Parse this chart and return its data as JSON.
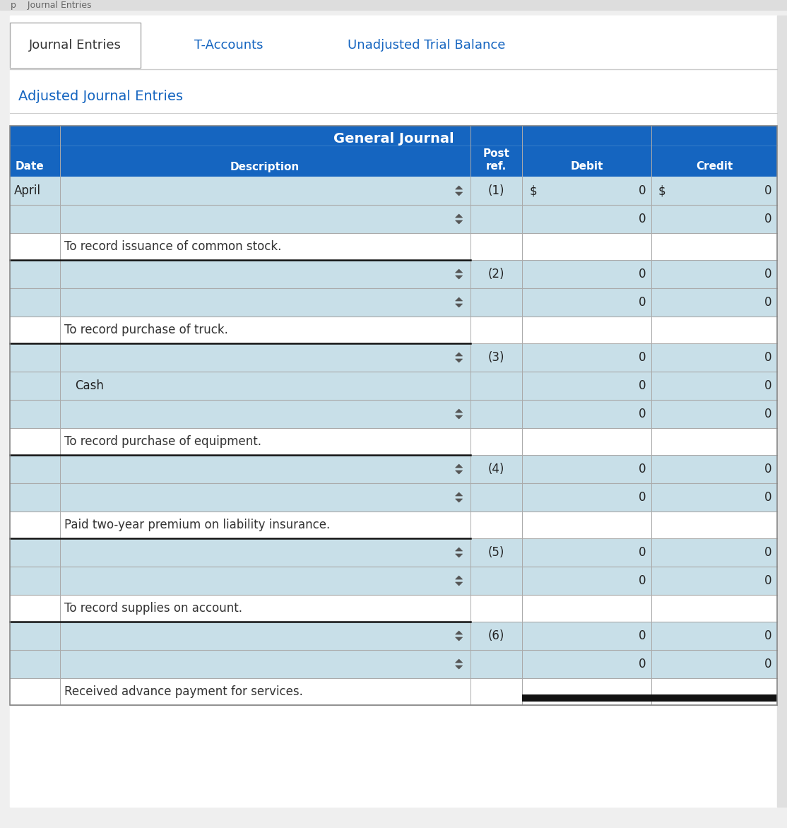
{
  "tab_labels": [
    "Journal Entries",
    "T-Accounts",
    "Unadjusted Trial Balance"
  ],
  "adjusted_label": "Adjusted Journal Entries",
  "table_title": "General Journal",
  "header_bg": "#1565C0",
  "tab_text_color_inactive": "#1565C0",
  "adjusted_text_color": "#1565C0",
  "row_bg_blue": "#C8DFE8",
  "row_bg_white": "#FFFFFF",
  "border_color": "#AAAAAA",
  "dark_border": "#111111",
  "figure_bg": "#EFEFEF",
  "white_area_bg": "#FFFFFF",
  "rows": [
    {
      "type": "data",
      "date": "April",
      "has_arrow": true,
      "ref": "(1)",
      "first_row": true
    },
    {
      "type": "data",
      "date": "",
      "has_arrow": true,
      "ref": "",
      "first_row": false
    },
    {
      "type": "note",
      "text": "To record issuance of common stock.",
      "dark_border_bottom": true,
      "has_black_bar": false
    },
    {
      "type": "data",
      "date": "",
      "has_arrow": true,
      "ref": "(2)",
      "first_row": false
    },
    {
      "type": "data",
      "date": "",
      "has_arrow": true,
      "ref": "",
      "first_row": false
    },
    {
      "type": "note",
      "text": "To record purchase of truck.",
      "dark_border_bottom": true,
      "has_black_bar": false
    },
    {
      "type": "data",
      "date": "",
      "has_arrow": true,
      "ref": "(3)",
      "first_row": false
    },
    {
      "type": "plain",
      "date": "",
      "desc": "Cash",
      "ref": "",
      "first_row": false
    },
    {
      "type": "data",
      "date": "",
      "has_arrow": true,
      "ref": "",
      "first_row": false
    },
    {
      "type": "note",
      "text": "To record purchase of equipment.",
      "dark_border_bottom": true,
      "has_black_bar": false
    },
    {
      "type": "data",
      "date": "",
      "has_arrow": true,
      "ref": "(4)",
      "first_row": false
    },
    {
      "type": "data",
      "date": "",
      "has_arrow": true,
      "ref": "",
      "first_row": false
    },
    {
      "type": "note",
      "text": "Paid two-year premium on liability insurance.",
      "dark_border_bottom": true,
      "has_black_bar": false
    },
    {
      "type": "data",
      "date": "",
      "has_arrow": true,
      "ref": "(5)",
      "first_row": false
    },
    {
      "type": "data",
      "date": "",
      "has_arrow": true,
      "ref": "",
      "first_row": false
    },
    {
      "type": "note",
      "text": "To record supplies on account.",
      "dark_border_bottom": true,
      "has_black_bar": false
    },
    {
      "type": "data",
      "date": "",
      "has_arrow": true,
      "ref": "(6)",
      "first_row": false
    },
    {
      "type": "data",
      "date": "",
      "has_arrow": true,
      "ref": "",
      "first_row": false
    },
    {
      "type": "note",
      "text": "Received advance payment for services.",
      "dark_border_bottom": false,
      "has_black_bar": true
    }
  ]
}
